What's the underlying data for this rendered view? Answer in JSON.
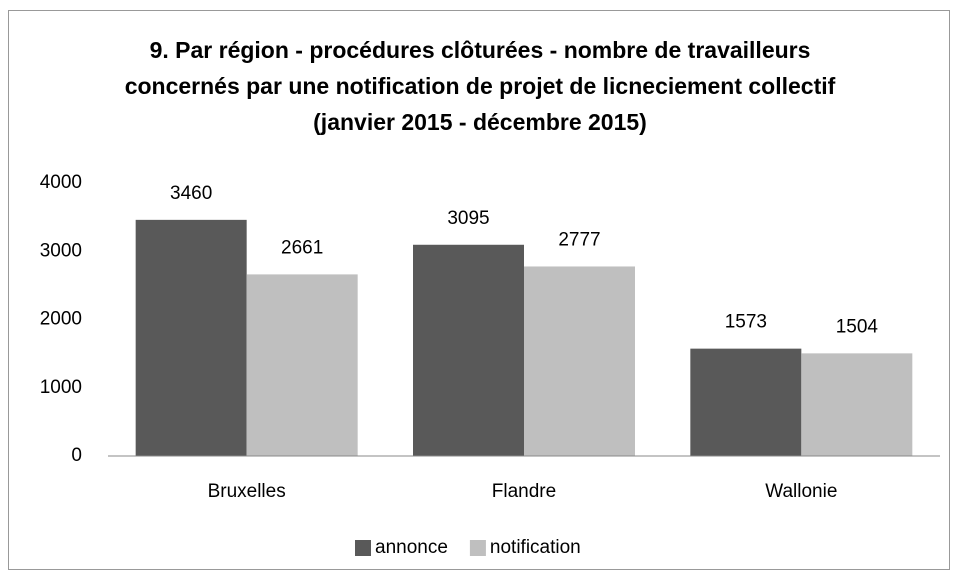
{
  "chart_data": {
    "type": "bar",
    "title": "9. Par région - procédures clôturées - nombre de travailleurs concernés par une notification de projet de licneciement collectif (janvier 2015 - décembre 2015)",
    "categories": [
      "Bruxelles",
      "Flandre",
      "Wallonie"
    ],
    "series": [
      {
        "name": "annonce",
        "color": "#595959",
        "values": [
          3460,
          3095,
          1573
        ]
      },
      {
        "name": "notification",
        "color": "#bfbfbf",
        "values": [
          2661,
          2777,
          1504
        ]
      }
    ],
    "ylim": [
      0,
      4000
    ],
    "yticks": [
      0,
      1000,
      2000,
      3000,
      4000
    ],
    "grid": false,
    "legend": "bottom"
  }
}
